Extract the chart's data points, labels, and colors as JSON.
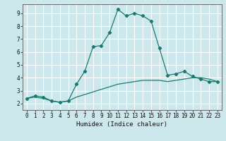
{
  "xlabel": "Humidex (Indice chaleur)",
  "bg_color": "#cce8ec",
  "grid_color": "#ffffff",
  "line_color": "#1a7a6e",
  "xlim": [
    -0.5,
    23.5
  ],
  "ylim": [
    1.5,
    9.7
  ],
  "xticks": [
    0,
    1,
    2,
    3,
    4,
    5,
    6,
    7,
    8,
    9,
    10,
    11,
    12,
    13,
    14,
    15,
    16,
    17,
    18,
    19,
    20,
    21,
    22,
    23
  ],
  "yticks": [
    2,
    3,
    4,
    5,
    6,
    7,
    8,
    9
  ],
  "curve1_x": [
    0,
    1,
    2,
    3,
    4,
    5,
    6,
    7,
    8,
    9,
    10,
    11,
    12,
    13,
    14,
    15,
    16,
    17,
    18,
    19,
    20,
    21,
    22,
    23
  ],
  "curve1_y": [
    2.4,
    2.6,
    2.5,
    2.2,
    2.1,
    2.2,
    3.5,
    4.5,
    6.4,
    6.5,
    7.5,
    9.3,
    8.8,
    9.0,
    8.8,
    8.4,
    6.3,
    4.2,
    4.3,
    4.5,
    4.1,
    3.9,
    3.7,
    3.7
  ],
  "curve2_x": [
    0,
    1,
    2,
    3,
    4,
    5,
    6,
    7,
    8,
    9,
    10,
    11,
    12,
    13,
    14,
    15,
    16,
    17,
    18,
    19,
    20,
    21,
    22,
    23
  ],
  "curve2_y": [
    2.4,
    2.5,
    2.4,
    2.2,
    2.1,
    2.2,
    2.5,
    2.7,
    2.9,
    3.1,
    3.3,
    3.5,
    3.6,
    3.7,
    3.8,
    3.8,
    3.8,
    3.7,
    3.8,
    3.9,
    4.0,
    4.0,
    3.9,
    3.7
  ],
  "xlabel_fontsize": 6.5,
  "tick_fontsize": 5.5,
  "marker_size": 2.2,
  "linewidth": 0.9
}
